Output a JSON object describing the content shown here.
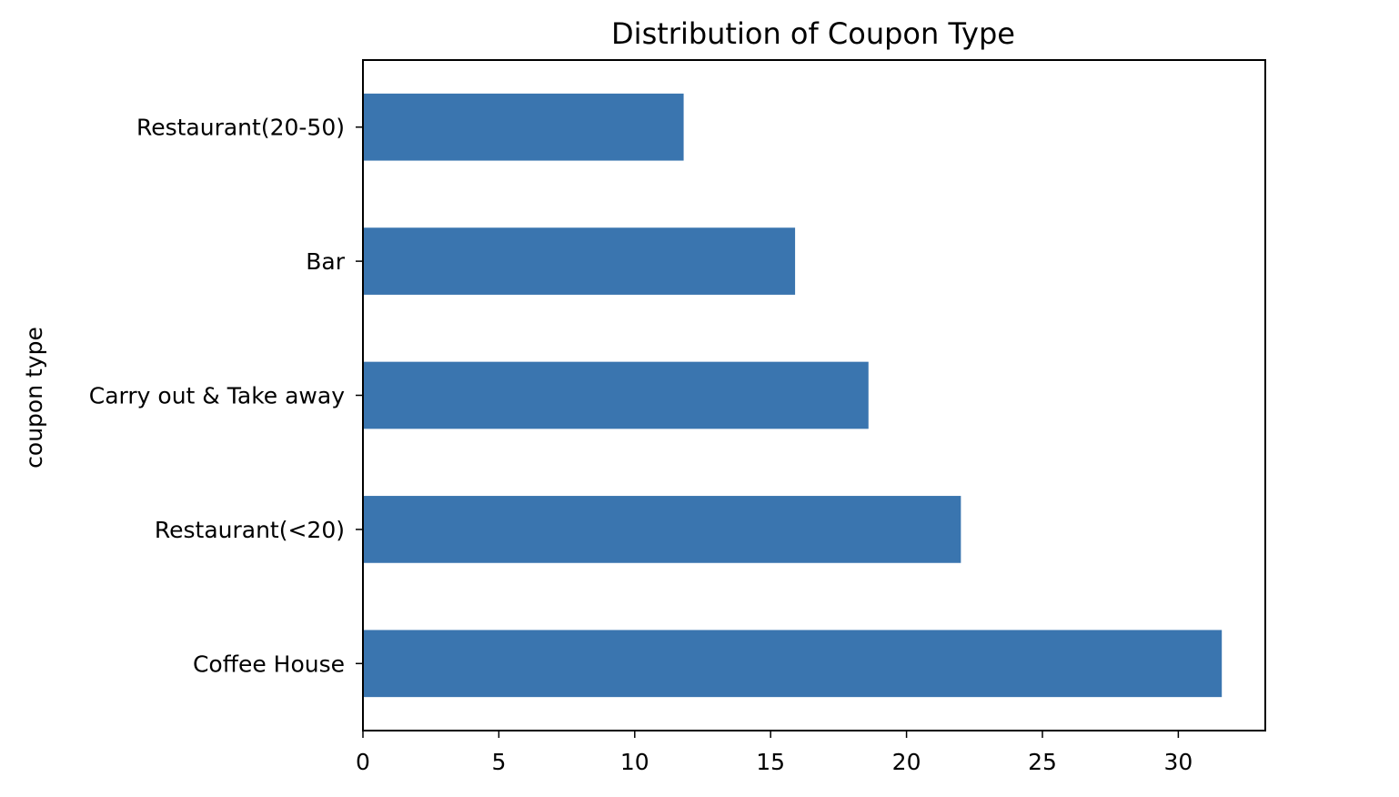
{
  "chart_data": {
    "type": "bar",
    "orientation": "horizontal",
    "title": "Distribution of Coupon Type",
    "xlabel": "",
    "ylabel": "coupon type",
    "categories": [
      "Coffee House",
      "Restaurant(<20)",
      "Carry out & Take away",
      "Bar",
      "Restaurant(20-50)"
    ],
    "values": [
      31.6,
      22.0,
      18.6,
      15.9,
      11.8
    ],
    "xlim": [
      0,
      33.2
    ],
    "xticks": [
      0,
      5,
      10,
      15,
      20,
      25,
      30
    ],
    "bar_color": "#3a75af",
    "grid": false,
    "legend": "none"
  }
}
